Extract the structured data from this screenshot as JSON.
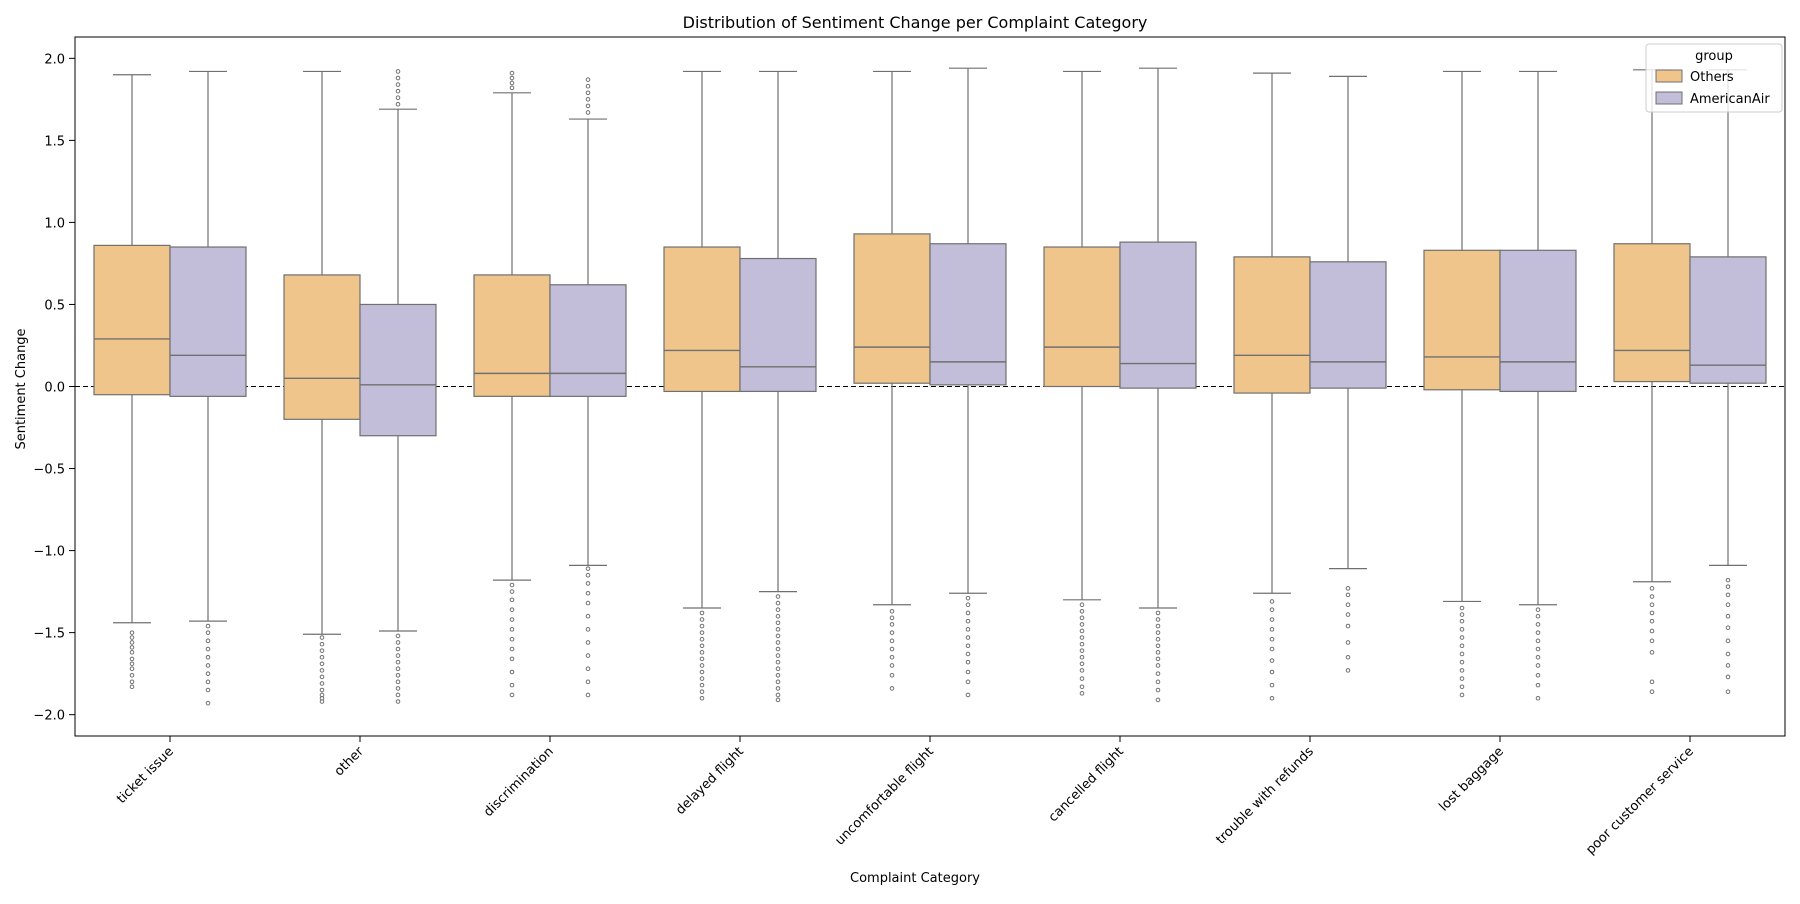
{
  "chart_data": {
    "type": "box",
    "title": "Distribution of Sentiment Change per Complaint Category",
    "xlabel": "Complaint Category",
    "ylabel": "Sentiment Change",
    "ylim": [
      -2.13,
      2.13
    ],
    "yticks": [
      2.0,
      1.5,
      1.0,
      0.5,
      0.0,
      -0.5,
      -1.0,
      -1.5,
      -2.0
    ],
    "ytick_labels": [
      "2.0",
      "1.5",
      "1.0",
      "0.5",
      "0.0",
      "−0.5",
      "−1.0",
      "−1.5",
      "−2.0"
    ],
    "reference_line": 0.0,
    "grid": false,
    "legend": {
      "title": "group",
      "placement": "top-right"
    },
    "categories": [
      "ticket issue",
      "other",
      "discrimination",
      "delayed flight",
      "uncomfortable flight",
      "cancelled flight",
      "trouble with refunds",
      "lost baggage",
      "poor customer service"
    ],
    "series": [
      {
        "name": "Others",
        "color": "#efc58c",
        "boxes": [
          {
            "whislo": -1.44,
            "q1": -0.05,
            "med": 0.29,
            "q3": 0.86,
            "whishi": 1.9,
            "fliers": [
              -1.5,
              -1.53,
              -1.56,
              -1.59,
              -1.62,
              -1.66,
              -1.69,
              -1.72,
              -1.76,
              -1.8,
              -1.83
            ]
          },
          {
            "whislo": -1.51,
            "q1": -0.2,
            "med": 0.05,
            "q3": 0.68,
            "whishi": 1.92,
            "fliers": [
              -1.53,
              -1.57,
              -1.61,
              -1.65,
              -1.69,
              -1.73,
              -1.77,
              -1.81,
              -1.85,
              -1.88,
              -1.9,
              -1.92
            ]
          },
          {
            "whislo": -1.18,
            "q1": -0.06,
            "med": 0.08,
            "q3": 0.68,
            "whishi": 1.79,
            "fliers": [
              1.82,
              1.85,
              1.88,
              1.91,
              -1.21,
              -1.25,
              -1.3,
              -1.36,
              -1.42,
              -1.48,
              -1.54,
              -1.6,
              -1.66,
              -1.74,
              -1.82,
              -1.88
            ]
          },
          {
            "whislo": -1.35,
            "q1": -0.03,
            "med": 0.22,
            "q3": 0.85,
            "whishi": 1.92,
            "fliers": [
              -1.38,
              -1.42,
              -1.46,
              -1.5,
              -1.54,
              -1.58,
              -1.62,
              -1.66,
              -1.7,
              -1.74,
              -1.78,
              -1.82,
              -1.86,
              -1.9
            ]
          },
          {
            "whislo": -1.33,
            "q1": 0.02,
            "med": 0.24,
            "q3": 0.93,
            "whishi": 1.92,
            "fliers": [
              -1.37,
              -1.41,
              -1.45,
              -1.5,
              -1.55,
              -1.6,
              -1.65,
              -1.7,
              -1.76,
              -1.84
            ]
          },
          {
            "whislo": -1.3,
            "q1": 0.0,
            "med": 0.24,
            "q3": 0.85,
            "whishi": 1.92,
            "fliers": [
              -1.33,
              -1.37,
              -1.41,
              -1.45,
              -1.49,
              -1.53,
              -1.57,
              -1.61,
              -1.65,
              -1.69,
              -1.73,
              -1.78,
              -1.83,
              -1.87
            ]
          },
          {
            "whislo": -1.26,
            "q1": -0.04,
            "med": 0.19,
            "q3": 0.79,
            "whishi": 1.91,
            "fliers": [
              -1.31,
              -1.36,
              -1.42,
              -1.48,
              -1.54,
              -1.6,
              -1.67,
              -1.74,
              -1.82,
              -1.9
            ]
          },
          {
            "whislo": -1.31,
            "q1": -0.02,
            "med": 0.18,
            "q3": 0.83,
            "whishi": 1.92,
            "fliers": [
              -1.35,
              -1.39,
              -1.43,
              -1.48,
              -1.53,
              -1.58,
              -1.63,
              -1.68,
              -1.73,
              -1.78,
              -1.83,
              -1.88
            ]
          },
          {
            "whislo": -1.19,
            "q1": 0.03,
            "med": 0.22,
            "q3": 0.87,
            "whishi": 1.93,
            "fliers": [
              -1.23,
              -1.28,
              -1.33,
              -1.38,
              -1.43,
              -1.49,
              -1.55,
              -1.62,
              -1.8,
              -1.86
            ]
          }
        ]
      },
      {
        "name": "AmericanAir",
        "color": "#c2bdd8",
        "boxes": [
          {
            "whislo": -1.43,
            "q1": -0.06,
            "med": 0.19,
            "q3": 0.85,
            "whishi": 1.92,
            "fliers": [
              -1.46,
              -1.5,
              -1.55,
              -1.6,
              -1.65,
              -1.7,
              -1.75,
              -1.8,
              -1.85,
              -1.93
            ]
          },
          {
            "whislo": -1.49,
            "q1": -0.3,
            "med": 0.01,
            "q3": 0.5,
            "whishi": 1.69,
            "fliers": [
              1.72,
              1.76,
              1.8,
              1.84,
              1.88,
              1.92,
              -1.52,
              -1.56,
              -1.6,
              -1.64,
              -1.68,
              -1.72,
              -1.76,
              -1.8,
              -1.84,
              -1.88,
              -1.92
            ]
          },
          {
            "whislo": -1.09,
            "q1": -0.06,
            "med": 0.08,
            "q3": 0.62,
            "whishi": 1.63,
            "fliers": [
              1.67,
              1.71,
              1.75,
              1.79,
              1.83,
              1.87,
              -1.11,
              -1.15,
              -1.2,
              -1.26,
              -1.32,
              -1.4,
              -1.48,
              -1.56,
              -1.64,
              -1.72,
              -1.8,
              -1.88
            ]
          },
          {
            "whislo": -1.25,
            "q1": -0.03,
            "med": 0.12,
            "q3": 0.78,
            "whishi": 1.92,
            "fliers": [
              -1.28,
              -1.32,
              -1.36,
              -1.4,
              -1.44,
              -1.48,
              -1.52,
              -1.56,
              -1.6,
              -1.64,
              -1.68,
              -1.72,
              -1.76,
              -1.8,
              -1.84,
              -1.88,
              -1.91
            ]
          },
          {
            "whislo": -1.26,
            "q1": 0.01,
            "med": 0.15,
            "q3": 0.87,
            "whishi": 1.94,
            "fliers": [
              -1.29,
              -1.33,
              -1.38,
              -1.43,
              -1.48,
              -1.53,
              -1.58,
              -1.63,
              -1.68,
              -1.74,
              -1.8,
              -1.88
            ]
          },
          {
            "whislo": -1.35,
            "q1": -0.01,
            "med": 0.14,
            "q3": 0.88,
            "whishi": 1.94,
            "fliers": [
              -1.38,
              -1.42,
              -1.46,
              -1.5,
              -1.54,
              -1.58,
              -1.62,
              -1.66,
              -1.7,
              -1.75,
              -1.8,
              -1.85,
              -1.91
            ]
          },
          {
            "whislo": -1.11,
            "q1": -0.01,
            "med": 0.15,
            "q3": 0.76,
            "whishi": 1.89,
            "fliers": [
              -1.23,
              -1.27,
              -1.33,
              -1.39,
              -1.46,
              -1.56,
              -1.65,
              -1.73
            ]
          },
          {
            "whislo": -1.33,
            "q1": -0.03,
            "med": 0.15,
            "q3": 0.83,
            "whishi": 1.92,
            "fliers": [
              -1.36,
              -1.4,
              -1.45,
              -1.5,
              -1.55,
              -1.6,
              -1.65,
              -1.7,
              -1.76,
              -1.82,
              -1.9
            ]
          },
          {
            "whislo": -1.09,
            "q1": 0.02,
            "med": 0.13,
            "q3": 0.79,
            "whishi": 1.93,
            "fliers": [
              -1.18,
              -1.22,
              -1.27,
              -1.33,
              -1.4,
              -1.47,
              -1.55,
              -1.63,
              -1.7,
              -1.77,
              -1.86
            ]
          }
        ]
      }
    ]
  }
}
